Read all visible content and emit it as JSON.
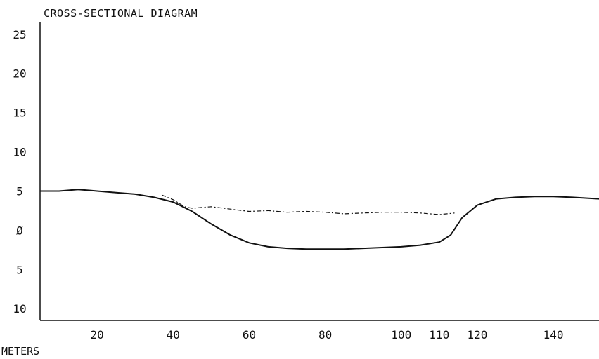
{
  "chart_data": {
    "type": "line",
    "title": "CROSS-SECTIONAL DIAGRAM",
    "xlabel": "METERS",
    "ylabel": "",
    "x_ticks": [
      20,
      40,
      60,
      80,
      100,
      110,
      120,
      140
    ],
    "y_ticks": [
      {
        "value": 25,
        "label": "25"
      },
      {
        "value": 20,
        "label": "20"
      },
      {
        "value": 15,
        "label": "15"
      },
      {
        "value": 10,
        "label": "10"
      },
      {
        "value": 5,
        "label": "5"
      },
      {
        "value": 0,
        "label": "Ø"
      },
      {
        "value": -5,
        "label": "5"
      },
      {
        "value": -10,
        "label": "10"
      }
    ],
    "xlim": [
      5,
      152
    ],
    "ylim": [
      -11.5,
      26.5
    ],
    "grid": false,
    "series": [
      {
        "style": "solid-bed-profile",
        "x": [
          5,
          10,
          15,
          20,
          25,
          30,
          35,
          40,
          45,
          50,
          55,
          60,
          65,
          70,
          75,
          80,
          85,
          90,
          95,
          100,
          105,
          110,
          113,
          116,
          120,
          125,
          130,
          135,
          140,
          145,
          152
        ],
        "y": [
          5.0,
          5.0,
          5.2,
          5.0,
          4.8,
          4.6,
          4.2,
          3.6,
          2.4,
          0.8,
          -0.6,
          -1.6,
          -2.1,
          -2.3,
          -2.4,
          -2.4,
          -2.4,
          -2.3,
          -2.2,
          -2.1,
          -1.9,
          -1.5,
          -0.6,
          1.6,
          3.2,
          4.0,
          4.2,
          4.3,
          4.3,
          4.2,
          4.0
        ]
      },
      {
        "style": "dashed-water-surface",
        "x": [
          37,
          40,
          43,
          45,
          50,
          55,
          60,
          65,
          70,
          75,
          80,
          85,
          90,
          95,
          100,
          105,
          110,
          114
        ],
        "y": [
          4.5,
          3.9,
          3.0,
          2.8,
          3.0,
          2.7,
          2.4,
          2.5,
          2.3,
          2.4,
          2.3,
          2.1,
          2.2,
          2.3,
          2.3,
          2.2,
          2.0,
          2.2
        ]
      }
    ]
  }
}
